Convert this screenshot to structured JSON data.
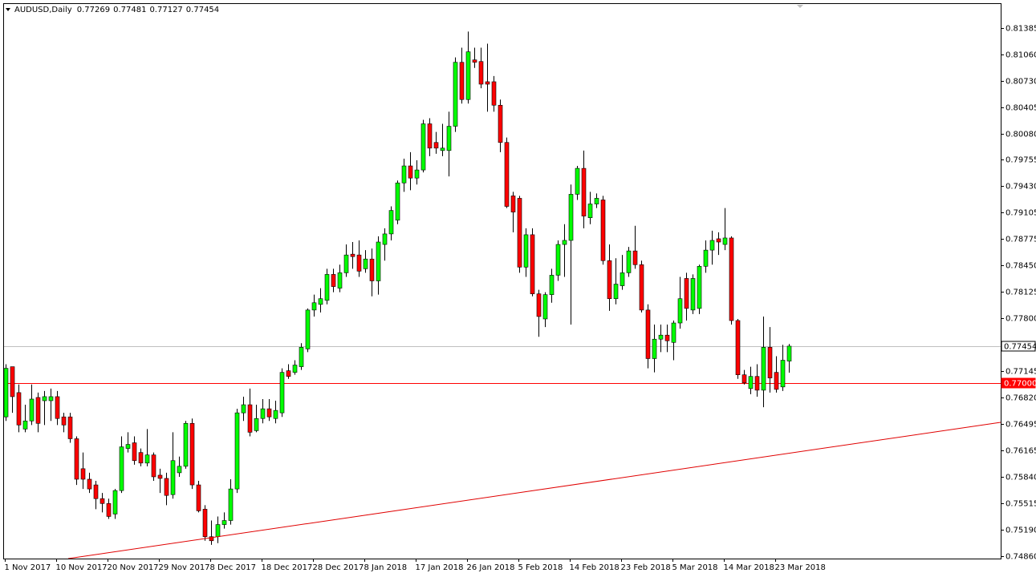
{
  "chart_data": {
    "type": "candlestick",
    "symbol": "AUDUSD,Daily",
    "categories": [
      "1 Nov 2017",
      null,
      null,
      null,
      null,
      null,
      null,
      null,
      "10 Nov 2017",
      null,
      null,
      null,
      null,
      null,
      null,
      null,
      "20 Nov 2017",
      null,
      null,
      null,
      null,
      null,
      null,
      null,
      "29 Nov 2017",
      null,
      null,
      null,
      null,
      null,
      null,
      null,
      "8 Dec 2017",
      null,
      null,
      null,
      null,
      null,
      null,
      null,
      "18 Dec 2017",
      null,
      null,
      null,
      null,
      null,
      null,
      null,
      "28 Dec 2017",
      null,
      null,
      null,
      null,
      null,
      null,
      null,
      "8 Jan 2018",
      null,
      null,
      null,
      null,
      null,
      null,
      null,
      "17 Jan 2018",
      null,
      null,
      null,
      null,
      null,
      null,
      null,
      "26 Jan 2018",
      null,
      null,
      null,
      null,
      null,
      null,
      null,
      "5 Feb 2018",
      null,
      null,
      null,
      null,
      null,
      null,
      null,
      "14 Feb 2018",
      null,
      null,
      null,
      null,
      null,
      null,
      null,
      "23 Feb 2018",
      null,
      null,
      null,
      null,
      null,
      null,
      null,
      "5 Mar 2018",
      null,
      null,
      null,
      null,
      null,
      null,
      null,
      "14 Mar 2018",
      null,
      null,
      null,
      null,
      null,
      null,
      null,
      "23 Mar 2018",
      null,
      null
    ],
    "open": [
      0.7658,
      0.772,
      0.7688,
      0.7643,
      0.7653,
      0.7682,
      0.7678,
      0.7678,
      0.7683,
      0.7658,
      0.7658,
      0.7631,
      0.7594,
      0.7581,
      0.7574,
      0.7557,
      0.7551,
      0.7538,
      0.7567,
      0.7619,
      0.7626,
      0.7614,
      0.7601,
      0.7611,
      0.7586,
      0.7582,
      0.7562,
      0.7589,
      0.7597,
      0.765,
      0.7574,
      0.7544,
      0.751,
      0.751,
      0.7525,
      0.753,
      0.7569,
      0.7663,
      0.7673,
      0.7641,
      0.7656,
      0.7668,
      0.7656,
      0.7663,
      0.7715,
      0.7713,
      0.772,
      0.7742,
      0.779,
      0.7797,
      0.7802,
      0.7834,
      0.7817,
      0.7836,
      0.7859,
      0.7858,
      0.7841,
      0.7853,
      0.7826,
      0.7871,
      0.7884,
      0.7901,
      0.7947,
      0.7968,
      0.7953,
      0.7963,
      0.802,
      0.7997,
      0.7987,
      0.7987,
      0.8017,
      0.8096,
      0.805,
      0.8099,
      0.8097,
      0.8072,
      0.8072,
      0.8043,
      0.7997,
      0.7931,
      0.7928,
      0.7843,
      0.7883,
      0.781,
      0.7779,
      0.7809,
      0.7833,
      0.7871,
      0.7876,
      0.7933,
      0.7965,
      0.7904,
      0.7921,
      0.7926,
      0.7851,
      0.7804,
      0.782,
      0.7836,
      0.7863,
      0.7846,
      0.779,
      0.773,
      0.7754,
      0.7759,
      0.775,
      0.7774,
      0.7829,
      0.779,
      0.7792,
      0.7844,
      0.7864,
      0.7878,
      0.7871,
      0.7879,
      0.7777,
      0.771,
      0.7693,
      0.7708,
      0.7691,
      0.7744,
      0.7713,
      0.7695,
      0.77269
    ],
    "high": [
      0.7723,
      0.772,
      0.7698,
      0.7673,
      0.7698,
      0.7688,
      0.769,
      0.7693,
      0.769,
      0.7663,
      0.7663,
      0.7634,
      0.7614,
      0.7589,
      0.7579,
      0.7564,
      0.7557,
      0.7569,
      0.7634,
      0.7639,
      0.7634,
      0.7619,
      0.7643,
      0.7614,
      0.7594,
      0.7589,
      0.7639,
      0.7609,
      0.7653,
      0.7656,
      0.7579,
      0.7549,
      0.753,
      0.7535,
      0.754,
      0.7581,
      0.7668,
      0.7683,
      0.7693,
      0.7673,
      0.768,
      0.768,
      0.7678,
      0.7718,
      0.7723,
      0.7728,
      0.7749,
      0.7792,
      0.7809,
      0.7817,
      0.7841,
      0.7841,
      0.7846,
      0.7871,
      0.7874,
      0.7876,
      0.7864,
      0.7866,
      0.7881,
      0.7891,
      0.7918,
      0.795,
      0.7977,
      0.7985,
      0.7975,
      0.8025,
      0.8027,
      0.801,
      0.802,
      0.8035,
      0.8102,
      0.8114,
      0.8134,
      0.8114,
      0.8114,
      0.8119,
      0.8079,
      0.805,
      0.8003,
      0.7936,
      0.7931,
      0.7891,
      0.7891,
      0.7815,
      0.7812,
      0.7841,
      0.7876,
      0.7896,
      0.7945,
      0.7968,
      0.7987,
      0.7936,
      0.7934,
      0.7931,
      0.7871,
      0.7854,
      0.7858,
      0.7868,
      0.7894,
      0.7851,
      0.7797,
      0.7772,
      0.7772,
      0.7772,
      0.7777,
      0.7831,
      0.7836,
      0.7834,
      0.7846,
      0.7876,
      0.7888,
      0.7886,
      0.7916,
      0.7881,
      0.7779,
      0.7716,
      0.772,
      0.7723,
      0.7782,
      0.7769,
      0.7733,
      0.7747,
      0.77481
    ],
    "low": [
      0.7653,
      0.7663,
      0.7639,
      0.7639,
      0.7648,
      0.7639,
      0.7648,
      0.7653,
      0.7648,
      0.7639,
      0.7626,
      0.7574,
      0.7569,
      0.7564,
      0.7544,
      0.754,
      0.7532,
      0.7532,
      0.7564,
      0.7614,
      0.7599,
      0.7597,
      0.7597,
      0.7579,
      0.7564,
      0.7549,
      0.7557,
      0.7584,
      0.7594,
      0.7569,
      0.754,
      0.7505,
      0.75,
      0.7502,
      0.752,
      0.7525,
      0.7564,
      0.7653,
      0.7634,
      0.7639,
      0.765,
      0.7653,
      0.765,
      0.7658,
      0.7705,
      0.771,
      0.7716,
      0.7738,
      0.7782,
      0.7787,
      0.7797,
      0.7812,
      0.7812,
      0.7831,
      0.7841,
      0.7831,
      0.7836,
      0.7807,
      0.7809,
      0.7851,
      0.7876,
      0.7896,
      0.7936,
      0.7938,
      0.7945,
      0.796,
      0.798,
      0.7983,
      0.798,
      0.7955,
      0.801,
      0.8045,
      0.8045,
      0.8089,
      0.8064,
      0.8035,
      0.8035,
      0.7985,
      0.7916,
      0.7886,
      0.7836,
      0.7831,
      0.7807,
      0.7757,
      0.7769,
      0.7799,
      0.7826,
      0.7831,
      0.7772,
      0.7926,
      0.7891,
      0.7896,
      0.7916,
      0.7846,
      0.7789,
      0.7797,
      0.7815,
      0.7831,
      0.7841,
      0.7787,
      0.7718,
      0.7713,
      0.7738,
      0.7738,
      0.7728,
      0.7767,
      0.7777,
      0.7785,
      0.7785,
      0.7836,
      0.7846,
      0.7858,
      0.7864,
      0.7772,
      0.7705,
      0.7698,
      0.7686,
      0.7683,
      0.767,
      0.7688,
      0.7688,
      0.769,
      0.77127
    ],
    "close": [
      0.7718,
      0.7683,
      0.7648,
      0.7653,
      0.768,
      0.765,
      0.7683,
      0.7683,
      0.7656,
      0.7648,
      0.7631,
      0.7581,
      0.7581,
      0.7569,
      0.7557,
      0.7551,
      0.7535,
      0.7567,
      0.7621,
      0.7624,
      0.7604,
      0.7601,
      0.7611,
      0.7584,
      0.7582,
      0.7561,
      0.7604,
      0.7597,
      0.765,
      0.7574,
      0.7542,
      0.751,
      0.7505,
      0.7525,
      0.753,
      0.7569,
      0.7663,
      0.7673,
      0.7639,
      0.7656,
      0.7668,
      0.7658,
      0.7666,
      0.7713,
      0.7708,
      0.7722,
      0.7744,
      0.779,
      0.7799,
      0.7804,
      0.7834,
      0.7819,
      0.7836,
      0.7858,
      0.7856,
      0.7838,
      0.7853,
      0.7826,
      0.7874,
      0.7884,
      0.7913,
      0.7947,
      0.7968,
      0.7953,
      0.7963,
      0.802,
      0.799,
      0.799,
      0.799,
      0.8017,
      0.8096,
      0.805,
      0.8109,
      0.8096,
      0.8069,
      0.8069,
      0.8043,
      0.7997,
      0.7918,
      0.7911,
      0.7843,
      0.7883,
      0.781,
      0.7782,
      0.7809,
      0.7833,
      0.7871,
      0.7876,
      0.7933,
      0.7965,
      0.7906,
      0.7921,
      0.7928,
      0.7851,
      0.7804,
      0.7822,
      0.7836,
      0.7863,
      0.7846,
      0.779,
      0.773,
      0.7754,
      0.7759,
      0.7752,
      0.7774,
      0.7804,
      0.7792,
      0.7829,
      0.7844,
      0.7864,
      0.7876,
      0.7874,
      0.7879,
      0.7777,
      0.771,
      0.77,
      0.7708,
      0.7691,
      0.7744,
      0.7706,
      0.7692,
      0.7728,
      0.77454
    ],
    "up_color": "#00ff00",
    "down_color": "#ff0000",
    "wick_color": "#000000",
    "ylim": [
      0.7483,
      0.8168
    ],
    "yticks": [
      0.81385,
      {
        "value": 0.8106,
        "label": "0.81060"
      },
      {
        "value": 0.8073,
        "label": "0.80730"
      },
      0.80405,
      {
        "value": 0.8008,
        "label": "0.80080"
      },
      0.79755,
      {
        "value": 0.7943,
        "label": "0.79430"
      },
      0.79105,
      0.78775,
      {
        "value": 0.7845,
        "label": "0.78450"
      },
      0.78125,
      {
        "value": 0.778,
        "label": "0.77800"
      },
      0.77145,
      {
        "value": 0.7682,
        "label": "0.76820"
      },
      0.76495,
      0.76165,
      {
        "value": 0.7584,
        "label": "0.75840"
      },
      0.75515,
      {
        "value": 0.7519,
        "label": "0.75190"
      },
      {
        "value": 0.7486,
        "label": "0.74860"
      }
    ],
    "level_line": {
      "value": 0.77,
      "label": "0.77000",
      "color": "#ff0000"
    },
    "price_line_color": "#c0c0c0"
  }
}
